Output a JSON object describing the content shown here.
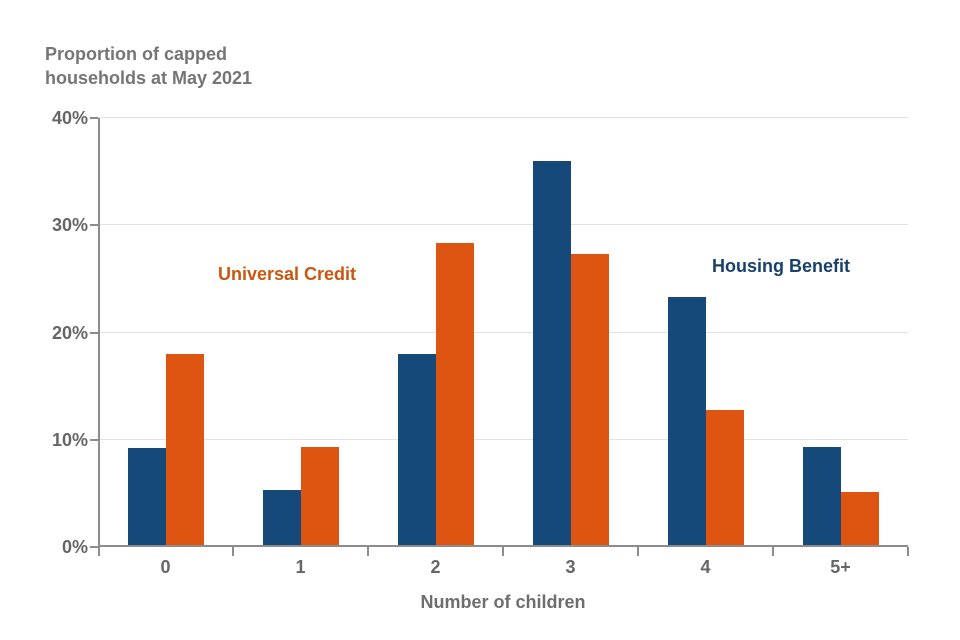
{
  "title": {
    "line1": "Proportion of capped",
    "line2": "households at May 2021"
  },
  "chart_data": {
    "type": "bar",
    "title": "Proportion of capped households at May 2021",
    "categories": [
      "0",
      "1",
      "2",
      "3",
      "4",
      "5+"
    ],
    "series": [
      {
        "name": "Housing Benefit",
        "color": "#15497A",
        "values": [
          9.0,
          5.1,
          17.8,
          35.8,
          23.1,
          9.1
        ]
      },
      {
        "name": "Universal Credit",
        "color": "#DD5511",
        "values": [
          17.8,
          9.1,
          28.2,
          27.1,
          12.6,
          4.9
        ]
      }
    ],
    "xlabel": "Number of children",
    "ylabel": "",
    "ylim": [
      0,
      40
    ],
    "yticks": [
      0,
      10,
      20,
      30,
      40
    ],
    "ytick_labels": [
      "0%",
      "10%",
      "20%",
      "30%",
      "40%"
    ],
    "grid": true,
    "legend_position": "in-plot text annotations"
  },
  "annotations": {
    "universal_credit": {
      "text": "Universal Credit",
      "color": "#C9570E"
    },
    "housing_benefit": {
      "text": "Housing Benefit",
      "color": "#17406B"
    }
  },
  "colors": {
    "axis_line": "#8C8C8C",
    "gridline": "#E2E2E2",
    "title_text": "#757575",
    "axis_text": "#666666"
  }
}
